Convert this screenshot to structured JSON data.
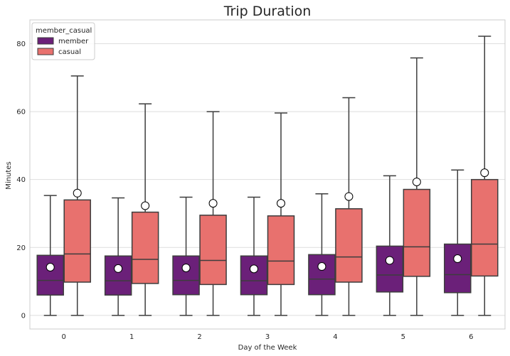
{
  "chart_data": {
    "type": "box",
    "title": "Trip Duration",
    "xlabel": "Day of the Week",
    "ylabel": "Minutes",
    "categories": [
      "0",
      "1",
      "2",
      "3",
      "4",
      "5",
      "6"
    ],
    "ylim": [
      -4,
      87
    ],
    "yticks": [
      0,
      20,
      40,
      60,
      80
    ],
    "grid": true,
    "legend": {
      "title": "member_casual",
      "placement": "top-left"
    },
    "series": [
      {
        "name": "member",
        "color": "#6b2079",
        "boxes": [
          {
            "whislo": 0,
            "q1": 6.0,
            "med": 10.3,
            "q3": 17.7,
            "whishi": 35.3,
            "mean": 14.2
          },
          {
            "whislo": 0,
            "q1": 6.0,
            "med": 10.2,
            "q3": 17.5,
            "whishi": 34.6,
            "mean": 13.8
          },
          {
            "whislo": 0,
            "q1": 6.1,
            "med": 10.3,
            "q3": 17.5,
            "whishi": 34.8,
            "mean": 14.0
          },
          {
            "whislo": 0,
            "q1": 6.1,
            "med": 10.2,
            "q3": 17.5,
            "whishi": 34.8,
            "mean": 13.7
          },
          {
            "whislo": 0,
            "q1": 6.1,
            "med": 10.7,
            "q3": 17.9,
            "whishi": 35.8,
            "mean": 14.4
          },
          {
            "whislo": 0,
            "q1": 6.9,
            "med": 11.9,
            "q3": 20.4,
            "whishi": 41.1,
            "mean": 16.2
          },
          {
            "whislo": 0,
            "q1": 6.7,
            "med": 12.0,
            "q3": 21.0,
            "whishi": 42.8,
            "mean": 16.7
          }
        ]
      },
      {
        "name": "casual",
        "color": "#e8716e",
        "boxes": [
          {
            "whislo": 0,
            "q1": 9.8,
            "med": 18.1,
            "q3": 34.0,
            "whishi": 70.5,
            "mean": 36.0
          },
          {
            "whislo": 0,
            "q1": 9.4,
            "med": 16.5,
            "q3": 30.4,
            "whishi": 62.3,
            "mean": 32.3
          },
          {
            "whislo": 0,
            "q1": 9.1,
            "med": 16.2,
            "q3": 29.5,
            "whishi": 60.0,
            "mean": 33.0
          },
          {
            "whislo": 0,
            "q1": 9.1,
            "med": 16.0,
            "q3": 29.3,
            "whishi": 59.6,
            "mean": 33.0
          },
          {
            "whislo": 0,
            "q1": 9.8,
            "med": 17.2,
            "q3": 31.4,
            "whishi": 64.1,
            "mean": 35.0
          },
          {
            "whislo": 0,
            "q1": 11.5,
            "med": 20.2,
            "q3": 37.1,
            "whishi": 75.8,
            "mean": 39.3
          },
          {
            "whislo": 0,
            "q1": 11.6,
            "med": 21.0,
            "q3": 40.0,
            "whishi": 82.2,
            "mean": 42.0
          }
        ]
      }
    ]
  }
}
